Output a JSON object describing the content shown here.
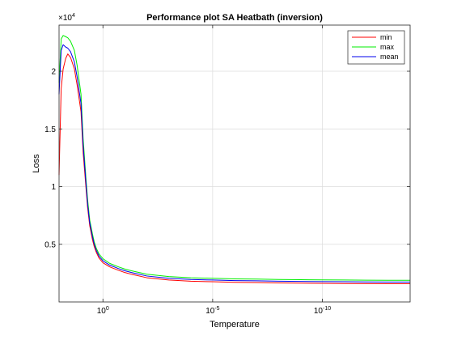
{
  "chart_data": {
    "type": "line",
    "title": "Performance plot SA Heatbath (inversion)",
    "xlabel": "Temperature",
    "ylabel": "Loss",
    "x_scale": "log",
    "x_direction": "decreasing",
    "xlim": [
      100,
      1e-14
    ],
    "ylim": [
      0,
      24000
    ],
    "y_multiplier_label": "×10",
    "y_multiplier_exponent": "4",
    "x_ticks": [
      {
        "value": 1,
        "base": "10",
        "exp": "0"
      },
      {
        "value": 1e-05,
        "base": "10",
        "exp": "-5"
      },
      {
        "value": 1e-10,
        "base": "10",
        "exp": "-10"
      }
    ],
    "y_ticks": [
      {
        "value": 5000,
        "label": "0.5"
      },
      {
        "value": 10000,
        "label": "1"
      },
      {
        "value": 15000,
        "label": "1.5"
      },
      {
        "value": 20000,
        "label": "2"
      }
    ],
    "grid": true,
    "legend_position": "top-right",
    "series": [
      {
        "name": "min",
        "color": "#ff0000",
        "x": [
          100,
          80,
          65,
          50,
          40,
          30,
          20,
          15,
          10,
          8,
          6,
          5,
          4,
          3,
          2.5,
          2,
          1.5,
          1,
          0.5,
          0.2,
          0.1,
          0.05,
          0.01,
          0.001,
          0.0001,
          1e-05,
          1e-06,
          1e-07,
          1e-08,
          1e-09,
          1e-10,
          1e-11,
          1e-12,
          1e-13,
          1e-14
        ],
        "y": [
          11000,
          18500,
          20200,
          21100,
          21500,
          21200,
          20200,
          18800,
          16500,
          13000,
          10000,
          8200,
          6600,
          5400,
          4800,
          4300,
          3800,
          3400,
          3050,
          2750,
          2550,
          2400,
          2100,
          1900,
          1800,
          1750,
          1700,
          1680,
          1650,
          1630,
          1610,
          1600,
          1590,
          1580,
          1580
        ]
      },
      {
        "name": "max",
        "color": "#00ee00",
        "x": [
          100,
          80,
          65,
          50,
          40,
          30,
          20,
          15,
          10,
          8,
          6,
          5,
          4,
          3,
          2.5,
          2,
          1.5,
          1,
          0.5,
          0.2,
          0.1,
          0.05,
          0.01,
          0.001,
          0.0001,
          1e-05,
          1e-06,
          1e-07,
          1e-08,
          1e-09,
          1e-10,
          1e-11,
          1e-12,
          1e-13,
          1e-14
        ],
        "y": [
          19000,
          22800,
          23100,
          23000,
          22900,
          22600,
          21800,
          20500,
          18000,
          14200,
          10800,
          8900,
          7100,
          5900,
          5200,
          4650,
          4150,
          3750,
          3350,
          3050,
          2850,
          2700,
          2400,
          2200,
          2100,
          2050,
          2000,
          1980,
          1950,
          1930,
          1910,
          1900,
          1890,
          1880,
          1880
        ]
      },
      {
        "name": "mean",
        "color": "#0000ee",
        "x": [
          100,
          80,
          65,
          50,
          40,
          30,
          20,
          15,
          10,
          8,
          6,
          5,
          4,
          3,
          2.5,
          2,
          1.5,
          1,
          0.5,
          0.2,
          0.1,
          0.05,
          0.01,
          0.001,
          0.0001,
          1e-05,
          1e-06,
          1e-07,
          1e-08,
          1e-09,
          1e-10,
          1e-11,
          1e-12,
          1e-13,
          1e-14
        ],
        "y": [
          18000,
          21800,
          22300,
          22100,
          22000,
          21700,
          20800,
          19500,
          17200,
          13600,
          10400,
          8500,
          6850,
          5650,
          5000,
          4470,
          3970,
          3570,
          3200,
          2900,
          2700,
          2550,
          2250,
          2050,
          1950,
          1900,
          1850,
          1830,
          1800,
          1780,
          1760,
          1750,
          1740,
          1730,
          1730
        ]
      }
    ]
  }
}
